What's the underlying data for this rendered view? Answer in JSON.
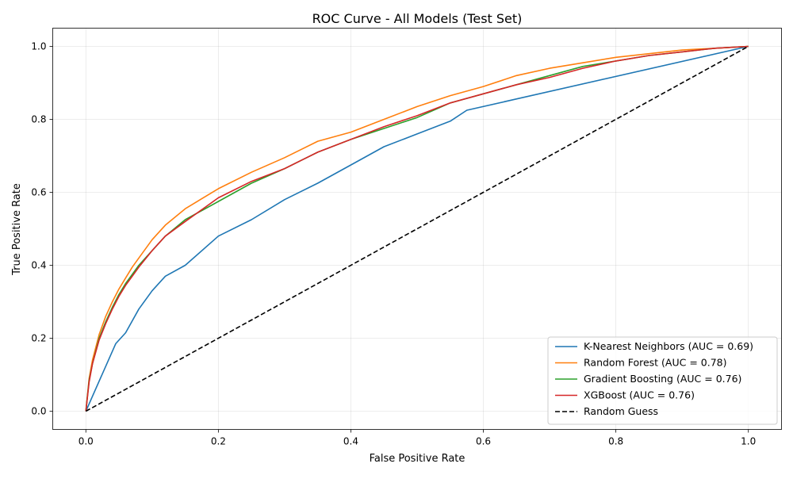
{
  "chart_data": {
    "type": "line",
    "title": "ROC Curve - All Models (Test Set)",
    "xlabel": "False Positive Rate",
    "ylabel": "True Positive Rate",
    "xlim": [
      -0.05,
      1.05
    ],
    "ylim": [
      -0.05,
      1.05
    ],
    "xticks": [
      "0.0",
      "0.2",
      "0.4",
      "0.6",
      "0.8",
      "1.0"
    ],
    "yticks": [
      "0.0",
      "0.2",
      "0.4",
      "0.6",
      "0.8",
      "1.0"
    ],
    "grid": true,
    "legend_position": "lower right",
    "series": [
      {
        "name": "K-Nearest Neighbors (AUC = 0.69)",
        "color": "#1f77b4",
        "style": "solid",
        "x": [
          0,
          0.045,
          0.06,
          0.08,
          0.1,
          0.12,
          0.15,
          0.2,
          0.25,
          0.3,
          0.35,
          0.4,
          0.45,
          0.5,
          0.55,
          0.575,
          1.0
        ],
        "y": [
          0,
          0.185,
          0.215,
          0.28,
          0.33,
          0.37,
          0.4,
          0.48,
          0.525,
          0.58,
          0.625,
          0.675,
          0.725,
          0.76,
          0.795,
          0.825,
          1.0
        ]
      },
      {
        "name": "Random Forest (AUC = 0.78)",
        "color": "#ff7f0e",
        "style": "solid",
        "x": [
          0,
          0.005,
          0.01,
          0.02,
          0.03,
          0.04,
          0.05,
          0.06,
          0.07,
          0.08,
          0.1,
          0.12,
          0.15,
          0.2,
          0.25,
          0.3,
          0.35,
          0.4,
          0.45,
          0.5,
          0.55,
          0.6,
          0.65,
          0.7,
          0.75,
          0.8,
          0.85,
          0.9,
          0.95,
          1.0
        ],
        "y": [
          0,
          0.09,
          0.14,
          0.21,
          0.26,
          0.3,
          0.335,
          0.365,
          0.395,
          0.42,
          0.47,
          0.51,
          0.555,
          0.61,
          0.655,
          0.695,
          0.74,
          0.765,
          0.8,
          0.835,
          0.865,
          0.89,
          0.92,
          0.94,
          0.955,
          0.97,
          0.98,
          0.99,
          0.995,
          1.0
        ]
      },
      {
        "name": "Gradient Boosting (AUC = 0.76)",
        "color": "#2ca02c",
        "style": "solid",
        "x": [
          0,
          0.005,
          0.01,
          0.02,
          0.03,
          0.04,
          0.05,
          0.06,
          0.07,
          0.08,
          0.1,
          0.12,
          0.15,
          0.2,
          0.25,
          0.3,
          0.35,
          0.4,
          0.45,
          0.5,
          0.55,
          0.6,
          0.65,
          0.7,
          0.75,
          0.8,
          0.85,
          0.9,
          0.95,
          1.0
        ],
        "y": [
          0,
          0.085,
          0.13,
          0.2,
          0.245,
          0.285,
          0.32,
          0.35,
          0.375,
          0.4,
          0.44,
          0.48,
          0.525,
          0.575,
          0.625,
          0.665,
          0.71,
          0.745,
          0.775,
          0.805,
          0.845,
          0.87,
          0.895,
          0.92,
          0.945,
          0.96,
          0.975,
          0.985,
          0.995,
          1.0
        ]
      },
      {
        "name": "XGBoost (AUC = 0.76)",
        "color": "#d62728",
        "style": "solid",
        "x": [
          0,
          0.005,
          0.01,
          0.02,
          0.03,
          0.04,
          0.05,
          0.06,
          0.07,
          0.08,
          0.1,
          0.12,
          0.15,
          0.2,
          0.25,
          0.3,
          0.35,
          0.4,
          0.45,
          0.5,
          0.55,
          0.6,
          0.65,
          0.7,
          0.75,
          0.8,
          0.85,
          0.9,
          0.95,
          1.0
        ],
        "y": [
          0,
          0.08,
          0.13,
          0.195,
          0.24,
          0.28,
          0.315,
          0.345,
          0.37,
          0.395,
          0.44,
          0.48,
          0.52,
          0.585,
          0.63,
          0.665,
          0.71,
          0.745,
          0.78,
          0.81,
          0.845,
          0.87,
          0.895,
          0.915,
          0.94,
          0.96,
          0.975,
          0.985,
          0.995,
          1.0
        ]
      },
      {
        "name": "Random Guess",
        "color": "#000000",
        "style": "dashed",
        "x": [
          0,
          1
        ],
        "y": [
          0,
          1
        ]
      }
    ]
  }
}
